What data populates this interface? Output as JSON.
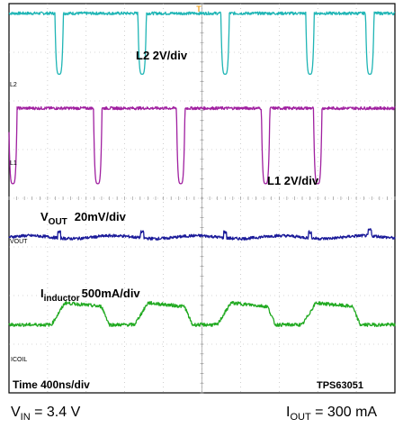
{
  "chart_data": {
    "type": "line",
    "time_base": "Time 400ns/div",
    "part_number": "TPS63051",
    "grid": true,
    "x_divisions": 10,
    "y_divisions": 8,
    "channels": [
      {
        "id": "L2",
        "marker": "L2",
        "label": "L2 2V/div",
        "color": "#1fb5b5",
        "description_values": "switch node high with negative pulses",
        "pulse_times_div": [
          1.3,
          3.45,
          5.6,
          7.8,
          9.35
        ],
        "pulse_width_div": 0.22,
        "baseline_div": 7.8,
        "pulse_low_div": 6.55
      },
      {
        "id": "L1",
        "marker": "L1",
        "label": "L1 2V/div",
        "color": "#a020a0",
        "pulse_times_div": [
          0.1,
          2.3,
          4.45,
          6.65,
          8.0
        ],
        "pulse_width_div": 0.22,
        "baseline_div": 5.85,
        "pulse_low_div": 4.3
      },
      {
        "id": "VOUT",
        "marker": "VOUT",
        "label_main": "V",
        "label_sub": "OUT",
        "label_rest": "20mV/div",
        "color": "#1a1a99",
        "baseline_div": 3.2
      },
      {
        "id": "ICOIL",
        "marker": "ICOIL",
        "label_main": "I",
        "label_sub": "inductor",
        "label_rest": "500mA/div",
        "color": "#22aa22",
        "low_div": 1.4,
        "high_div": 1.85,
        "ramp_times_div": [
          1.3,
          3.45,
          5.6,
          7.8
        ]
      }
    ]
  },
  "conditions": {
    "vin_main": "V",
    "vin_sub": "IN",
    "vin_rest": " = 3.4 V",
    "iout_main": "I",
    "iout_sub": "OUT",
    "iout_rest": " = 300 mA"
  },
  "trigger_marker": "T",
  "colors": {
    "grid": "#b0b0b0",
    "frame": "#000000",
    "trigger": "#f0a020"
  }
}
